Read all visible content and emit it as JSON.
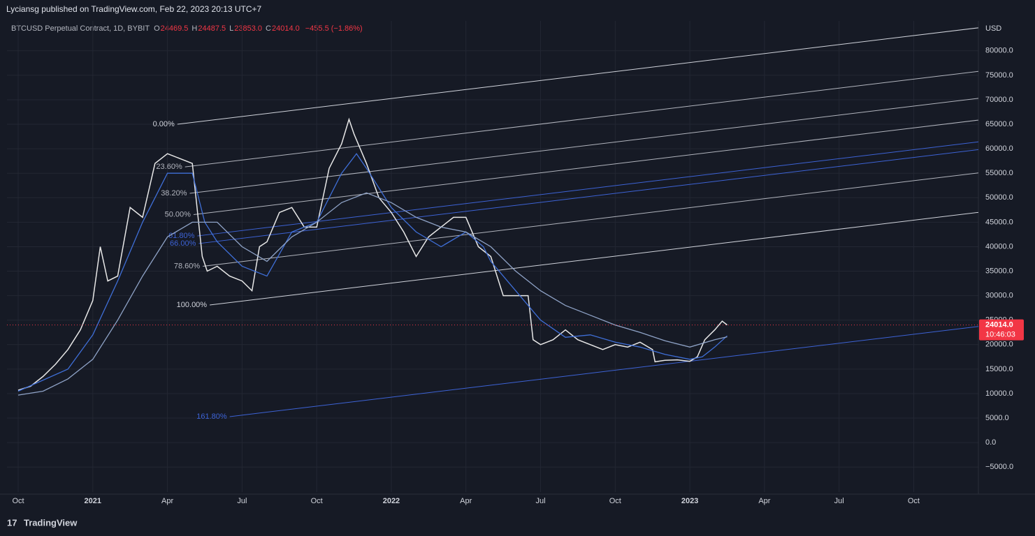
{
  "header": {
    "publisher": "Lyciansg published on TradingView.com, Feb 22, 2023 20:13 UTC+7",
    "symbol": "BTCUSD Perpetual Contract, 1D, BYBIT",
    "ohlc": [
      {
        "key": "O",
        "value": "24469.5"
      },
      {
        "key": "H",
        "value": "24487.5"
      },
      {
        "key": "L",
        "value": "23853.0"
      },
      {
        "key": "C",
        "value": "24014.0"
      }
    ],
    "change": "−455.5 (−1.86%)"
  },
  "footer": {
    "brand": "TradingView"
  },
  "chart_data": {
    "type": "line",
    "y_unit": "USD",
    "xlim": [
      -0.45,
      38.6
    ],
    "ylim": [
      -10100,
      86100
    ],
    "xticks": [
      {
        "value": 0,
        "label": "Oct"
      },
      {
        "value": 3,
        "label": "2021"
      },
      {
        "value": 6,
        "label": "Apr"
      },
      {
        "value": 9,
        "label": "Jul"
      },
      {
        "value": 12,
        "label": "Oct"
      },
      {
        "value": 15,
        "label": "2022"
      },
      {
        "value": 18,
        "label": "Apr"
      },
      {
        "value": 21,
        "label": "Jul"
      },
      {
        "value": 24,
        "label": "Oct"
      },
      {
        "value": 27,
        "label": "2023"
      },
      {
        "value": 30,
        "label": "Apr"
      },
      {
        "value": 33,
        "label": "Jul"
      },
      {
        "value": 36,
        "label": "Oct"
      }
    ],
    "yticks": [
      {
        "value": -5000,
        "label": "−5000.0"
      },
      {
        "value": 0,
        "label": "0.0"
      },
      {
        "value": 5000,
        "label": "5000.0"
      },
      {
        "value": 10000,
        "label": "10000.0"
      },
      {
        "value": 15000,
        "label": "15000.0"
      },
      {
        "value": 20000,
        "label": "20000.0"
      },
      {
        "value": 25000,
        "label": "25000.0"
      },
      {
        "value": 30000,
        "label": "30000.0"
      },
      {
        "value": 35000,
        "label": "35000.0"
      },
      {
        "value": 40000,
        "label": "40000.0"
      },
      {
        "value": 45000,
        "label": "45000.0"
      },
      {
        "value": 50000,
        "label": "50000.0"
      },
      {
        "value": 55000,
        "label": "55000.0"
      },
      {
        "value": 60000,
        "label": "60000.0"
      },
      {
        "value": 65000,
        "label": "65000.0"
      },
      {
        "value": 70000,
        "label": "70000.0"
      },
      {
        "value": 75000,
        "label": "75000.0"
      },
      {
        "value": 80000,
        "label": "80000.0"
      }
    ],
    "grid": true,
    "series": [
      {
        "color": "#e8e8e8",
        "x": [
          0,
          0.5,
          1,
          1.5,
          2,
          2.5,
          3,
          3.3,
          3.6,
          4,
          4.5,
          5,
          5.5,
          6,
          6.5,
          7,
          7.4,
          7.6,
          8,
          8.5,
          9,
          9.4,
          9.7,
          10,
          10.5,
          11,
          11.5,
          12,
          12.5,
          13,
          13.3,
          13.5,
          14,
          14.5,
          15,
          15.5,
          16,
          16.5,
          17,
          17.5,
          18,
          18.5,
          19,
          19.5,
          20,
          20.5,
          20.7,
          21,
          21.5,
          22,
          22.5,
          23,
          23.5,
          24,
          24.5,
          25,
          25.5,
          25.6,
          26,
          26.5,
          27,
          27.3,
          27.6,
          28,
          28.3,
          28.5
        ],
        "values": [
          10700,
          11500,
          13500,
          16000,
          19000,
          23000,
          29000,
          40000,
          33000,
          34000,
          48000,
          46000,
          57000,
          59000,
          58000,
          57000,
          38000,
          35000,
          36000,
          34000,
          33000,
          31000,
          40000,
          41000,
          47000,
          48000,
          44000,
          44000,
          56000,
          61000,
          66000,
          63000,
          57000,
          50000,
          47000,
          43000,
          38000,
          42000,
          44000,
          46000,
          46000,
          40000,
          38000,
          30000,
          30000,
          30000,
          21000,
          20000,
          21000,
          23000,
          21000,
          20000,
          19000,
          20000,
          19500,
          20500,
          19000,
          16500,
          16800,
          16900,
          16600,
          17500,
          21000,
          23000,
          24800,
          24014
        ]
      },
      {
        "color": "#3f6fd8",
        "x": [
          0,
          2,
          3,
          4,
          5,
          6,
          7,
          7.5,
          8,
          9,
          10,
          11,
          12,
          13,
          13.6,
          14,
          15,
          16,
          17,
          18,
          18.7,
          19,
          20,
          21,
          22,
          23,
          24,
          25,
          26,
          27,
          27.5,
          28,
          28.5
        ],
        "values": [
          10500,
          15000,
          22000,
          33000,
          45000,
          55000,
          55000,
          45000,
          41000,
          36000,
          34000,
          43000,
          45000,
          55000,
          59000,
          56000,
          48000,
          43000,
          40000,
          43000,
          40000,
          37000,
          31000,
          25000,
          21500,
          22000,
          20500,
          19500,
          18000,
          17000,
          17500,
          19500,
          21800
        ]
      },
      {
        "color": "#8fa3c7",
        "x": [
          0,
          1,
          2,
          3,
          4,
          5,
          6,
          7,
          8,
          9,
          10,
          11,
          12,
          13,
          14,
          15,
          16,
          17,
          18,
          19,
          20,
          21,
          22,
          23,
          24,
          25,
          26,
          27,
          28,
          28.5
        ],
        "values": [
          9700,
          10500,
          13000,
          17000,
          25000,
          34000,
          42000,
          45000,
          45000,
          40000,
          37000,
          42000,
          45000,
          49000,
          51000,
          49000,
          46000,
          44000,
          43000,
          40000,
          35000,
          31000,
          28000,
          26000,
          24000,
          22500,
          20800,
          19500,
          21000,
          21600
        ]
      }
    ],
    "last_price": {
      "value": 24014,
      "label": "24014.0",
      "countdown": "10:46:03",
      "color": "#f23645"
    },
    "fib_channel": {
      "anchor_0": [
        6.4,
        65000
      ],
      "anchor_100": [
        7.7,
        28100
      ],
      "slope_end": [
        38.6,
        84700
      ],
      "levels": [
        {
          "value": 0,
          "label": "0.00%",
          "color": "#d1d4dc"
        },
        {
          "value": 23.6,
          "label": "23.60%",
          "color": "#b2b5be"
        },
        {
          "value": 38.2,
          "label": "38.20%",
          "color": "#b2b5be"
        },
        {
          "value": 50,
          "label": "50.00%",
          "color": "#b2b5be"
        },
        {
          "value": 61.8,
          "label": "61.80%",
          "color": "#3d63d6"
        },
        {
          "value": 66,
          "label": "66.00%",
          "color": "#3d63d6"
        },
        {
          "value": 78.6,
          "label": "78.60%",
          "color": "#b2b5be"
        },
        {
          "value": 100,
          "label": "100.00%",
          "color": "#d1d4dc"
        },
        {
          "value": 161.8,
          "label": "161.80%",
          "color": "#3d63d6"
        }
      ]
    }
  }
}
